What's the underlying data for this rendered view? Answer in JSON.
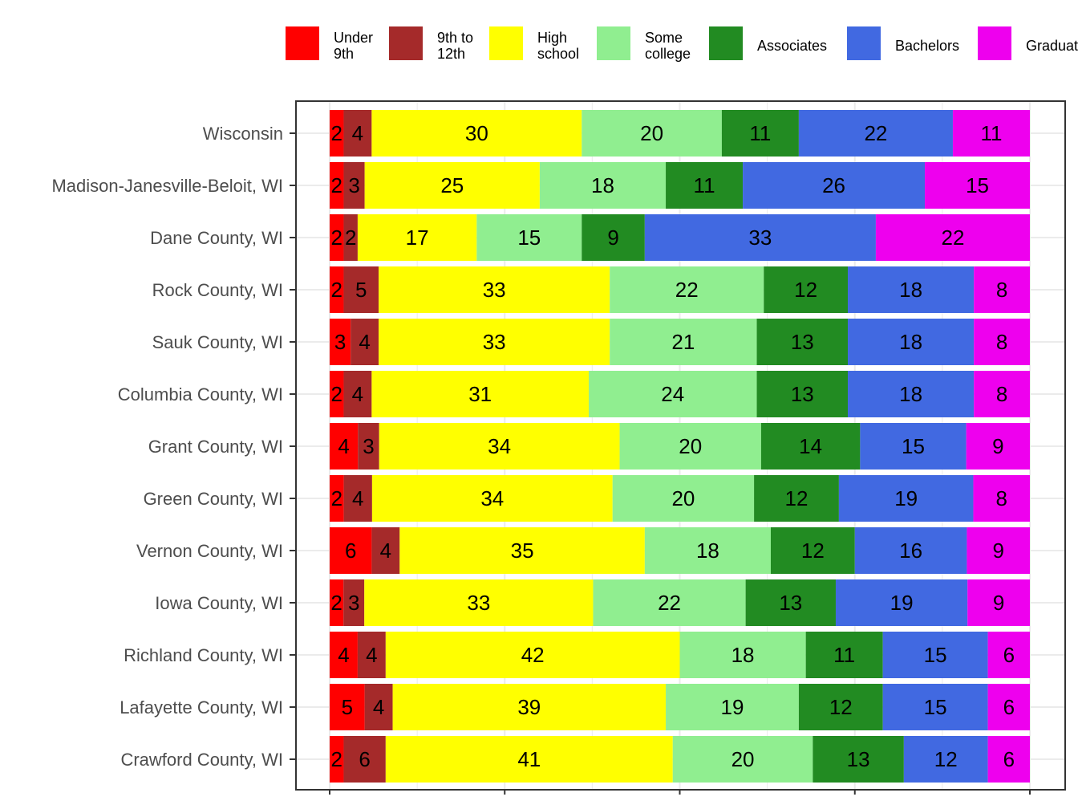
{
  "chart_data": {
    "type": "bar",
    "orientation": "horizontal",
    "stacked": "percent",
    "title": "",
    "xlabel": "",
    "ylabel": "",
    "xlim": [
      0,
      100
    ],
    "grid": true,
    "legend_position": "top",
    "categories": [
      "Wisconsin",
      "Madison-Janesville-Beloit, WI",
      "Dane County, WI",
      "Rock County, WI",
      "Sauk County, WI",
      "Columbia County, WI",
      "Grant County, WI",
      "Green County, WI",
      "Vernon County, WI",
      "Iowa County, WI",
      "Richland County, WI",
      "Lafayette County, WI",
      "Crawford County, WI"
    ],
    "series": [
      {
        "name": "Under 9th",
        "legend_lines": [
          "Under",
          "9th"
        ],
        "color": "#FF0000",
        "values": [
          2,
          2,
          2,
          2,
          3,
          2,
          4,
          2,
          6,
          2,
          4,
          5,
          2
        ]
      },
      {
        "name": "9th to 12th",
        "legend_lines": [
          "9th to",
          "12th"
        ],
        "color": "#A52A2A",
        "values": [
          4,
          3,
          2,
          5,
          4,
          4,
          3,
          4,
          4,
          3,
          4,
          4,
          6
        ]
      },
      {
        "name": "High school",
        "legend_lines": [
          "High",
          "school"
        ],
        "color": "#FFFF00",
        "values": [
          30,
          25,
          17,
          33,
          33,
          31,
          34,
          34,
          35,
          33,
          42,
          39,
          41
        ]
      },
      {
        "name": "Some college",
        "legend_lines": [
          "Some",
          "college"
        ],
        "color": "#90EE90",
        "values": [
          20,
          18,
          15,
          22,
          21,
          24,
          20,
          20,
          18,
          22,
          18,
          19,
          20
        ]
      },
      {
        "name": "Associates",
        "legend_lines": [
          "Associates"
        ],
        "color": "#228B22",
        "values": [
          11,
          11,
          9,
          12,
          13,
          13,
          14,
          12,
          12,
          13,
          11,
          12,
          13
        ]
      },
      {
        "name": "Bachelors",
        "legend_lines": [
          "Bachelors"
        ],
        "color": "#4169E1",
        "values": [
          22,
          26,
          33,
          18,
          18,
          18,
          15,
          19,
          16,
          19,
          15,
          15,
          12
        ]
      },
      {
        "name": "Graduate",
        "legend_lines": [
          "Graduate"
        ],
        "color": "#EE00EE",
        "values": [
          11,
          15,
          22,
          8,
          8,
          8,
          9,
          8,
          9,
          9,
          6,
          6,
          6
        ]
      }
    ]
  }
}
